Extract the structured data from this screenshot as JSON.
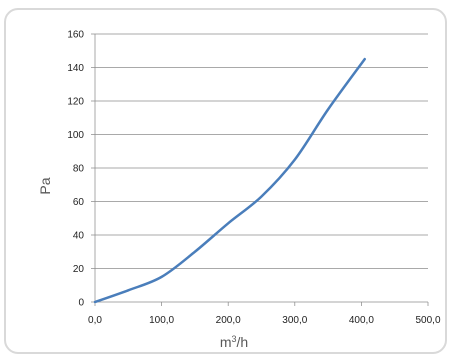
{
  "chart_data": {
    "type": "line",
    "title": "",
    "xlabel_base": "m",
    "xlabel_sup": "3",
    "xlabel_tail": "/h",
    "ylabel": "Pa",
    "xlim": [
      0,
      500
    ],
    "ylim": [
      0,
      160
    ],
    "x_ticks": [
      0,
      100,
      200,
      300,
      400,
      500
    ],
    "x_tick_labels": [
      "0,0",
      "100,0",
      "200,0",
      "300,0",
      "400,0",
      "500,0"
    ],
    "y_ticks": [
      0,
      20,
      40,
      60,
      80,
      100,
      120,
      140,
      160
    ],
    "y_tick_labels": [
      "0",
      "20",
      "40",
      "60",
      "80",
      "100",
      "120",
      "140",
      "160"
    ],
    "grid": "horizontal",
    "legend": "none",
    "series": [
      {
        "color": "#4a7ebb",
        "x": [
          0,
          50,
          100,
          150,
          200,
          250,
          300,
          350,
          405
        ],
        "y": [
          0,
          7,
          15,
          30,
          47,
          63,
          85,
          115,
          145
        ]
      }
    ]
  }
}
